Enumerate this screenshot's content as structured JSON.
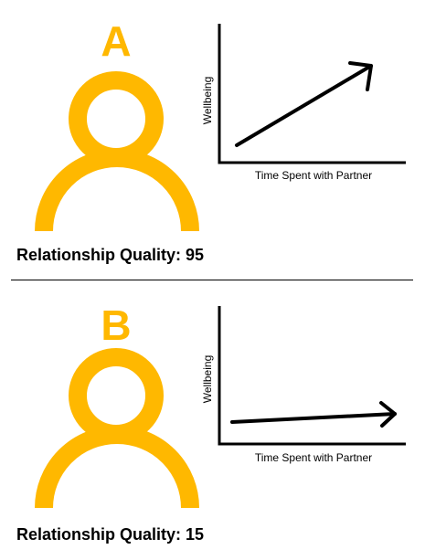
{
  "colors": {
    "person": "#FFB800",
    "line": "#000000"
  },
  "panels": [
    {
      "letter": "A",
      "icon": "person-icon",
      "graph": {
        "ylabel": "Wellbeing",
        "xlabel": "Time Spent with Partner",
        "trend": "steep-increase"
      },
      "caption_label": "Relationship Quality:",
      "caption_value": "95"
    },
    {
      "letter": "B",
      "icon": "person-icon",
      "graph": {
        "ylabel": "Wellbeing",
        "xlabel": "Time Spent with Partner",
        "trend": "slight-increase"
      },
      "caption_label": "Relationship Quality:",
      "caption_value": "15"
    }
  ]
}
